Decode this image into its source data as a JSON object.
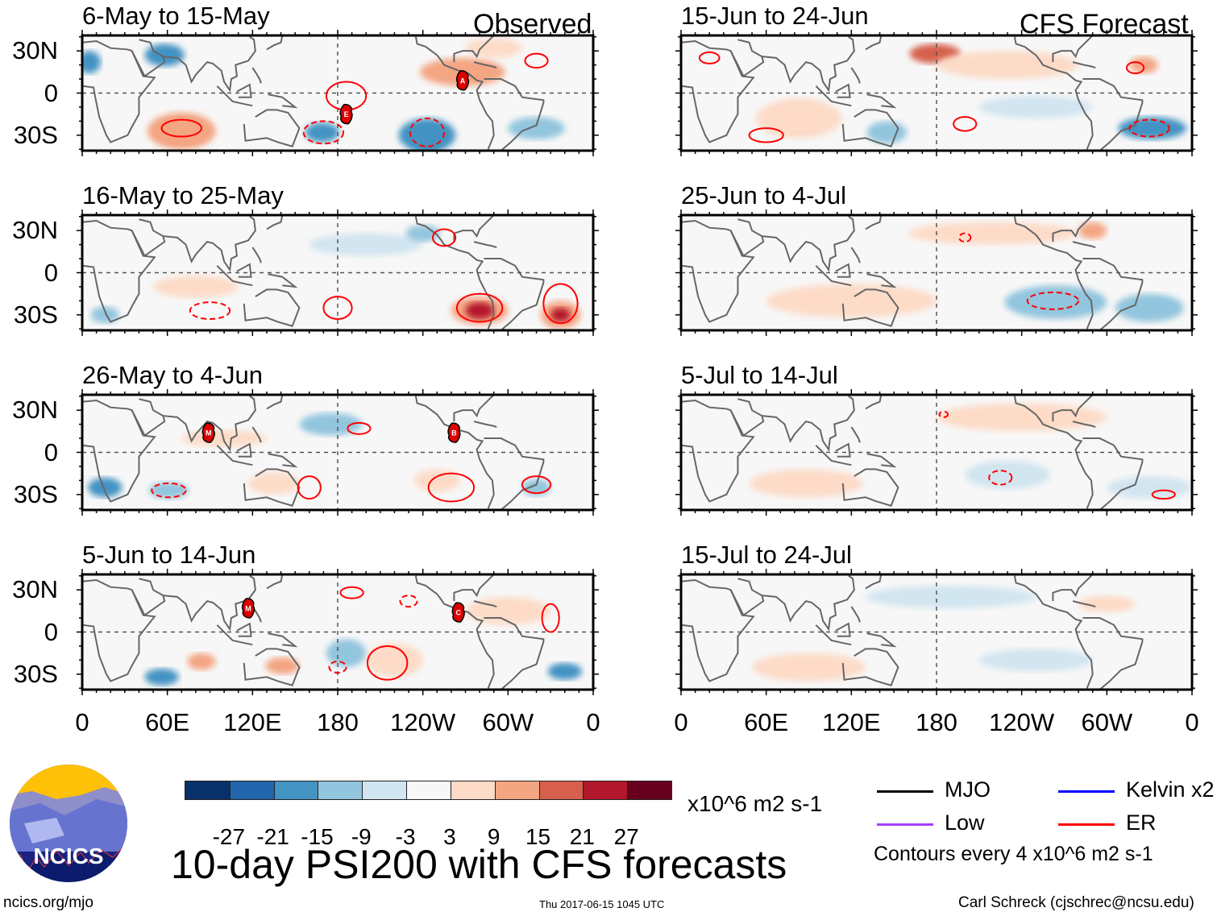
{
  "figure": {
    "title": "10-day PSI200 with CFS forecasts",
    "observed_label": "Observed",
    "forecast_label": "CFS Forecast",
    "footer_left": "ncics.org/mjo",
    "footer_center": "Thu 2017-06-15 1045 UTC",
    "footer_right": "Carl Schreck (cjschrec@ncsu.edu)",
    "logo_text": "NCICS"
  },
  "axes": {
    "y_ticks": [
      "30N",
      "0",
      "30S"
    ],
    "x_ticks": [
      "0",
      "60E",
      "120E",
      "180",
      "120W",
      "60W",
      "0"
    ]
  },
  "colorbar": {
    "colors": [
      "#08306b",
      "#2166ac",
      "#4393c3",
      "#92c5de",
      "#d1e5f0",
      "#f7f7f7",
      "#fddbc7",
      "#f4a582",
      "#d6604d",
      "#b2182b",
      "#67001f"
    ],
    "labels": [
      "-27",
      "-21",
      "-15",
      "-9",
      "-3",
      "3",
      "9",
      "15",
      "21",
      "27"
    ],
    "units": "x10^6 m2 s-1"
  },
  "legend": {
    "items": [
      {
        "label": "MJO",
        "color": "#000000"
      },
      {
        "label": "Kelvin x2",
        "color": "#0000ff"
      },
      {
        "label": "Low",
        "color": "#a040ff"
      },
      {
        "label": "ER",
        "color": "#ff0000"
      }
    ],
    "contour_note": "Contours every 4 x10^6 m2 s-1"
  },
  "chart_data": {
    "type": "map",
    "variable": "200-hPa streamfunction anomaly (PSI200)",
    "units": "x10^6 m2 s-1",
    "lon_range": [
      0,
      360
    ],
    "lat_range": [
      -41,
      41
    ],
    "panels": [
      {
        "title": "6-May to 15-May",
        "kind": "observed",
        "anomalies": [
          [
            70,
            -27,
            16,
            9,
            9
          ],
          [
            70,
            -27,
            24,
            13,
            7
          ],
          [
            243,
            -32,
            12,
            8,
            0
          ],
          [
            243,
            -30,
            20,
            12,
            2
          ],
          [
            169,
            -28,
            12,
            7,
            2
          ],
          [
            58,
            27,
            14,
            8,
            2
          ],
          [
            268,
            15,
            30,
            10,
            7
          ],
          [
            290,
            32,
            20,
            7,
            6
          ],
          [
            5,
            22,
            8,
            8,
            2
          ],
          [
            320,
            -25,
            20,
            8,
            3
          ]
        ],
        "er_contours": [
          [
            70,
            -25,
            14,
            6,
            0
          ],
          [
            186,
            -2,
            14,
            10,
            0
          ],
          [
            170,
            -28,
            14,
            8,
            1
          ],
          [
            243,
            -28,
            12,
            10,
            1
          ],
          [
            320,
            23,
            8,
            5,
            0
          ]
        ],
        "storms": [
          [
            268,
            9,
            "A"
          ],
          [
            186,
            -15,
            "E"
          ]
        ]
      },
      {
        "title": "16-May to 25-May",
        "kind": "observed",
        "anomalies": [
          [
            280,
            -27,
            20,
            10,
            7
          ],
          [
            280,
            -27,
            10,
            6,
            9
          ],
          [
            337,
            -30,
            14,
            10,
            7
          ],
          [
            337,
            -30,
            7,
            5,
            9
          ],
          [
            16,
            -30,
            10,
            6,
            3
          ],
          [
            200,
            20,
            40,
            8,
            4
          ],
          [
            80,
            -10,
            30,
            8,
            6
          ],
          [
            240,
            28,
            12,
            6,
            3
          ]
        ],
        "er_contours": [
          [
            280,
            -25,
            16,
            10,
            0
          ],
          [
            337,
            -22,
            12,
            14,
            0
          ],
          [
            90,
            -27,
            14,
            6,
            1
          ],
          [
            180,
            -25,
            10,
            8,
            0
          ],
          [
            255,
            25,
            8,
            6,
            0
          ]
        ],
        "storms": []
      },
      {
        "title": "26-May to 4-Jun",
        "kind": "observed",
        "anomalies": [
          [
            16,
            -25,
            12,
            7,
            2
          ],
          [
            61,
            -27,
            14,
            6,
            3
          ],
          [
            135,
            -22,
            18,
            8,
            6
          ],
          [
            175,
            20,
            22,
            8,
            3
          ],
          [
            250,
            -20,
            16,
            8,
            6
          ],
          [
            320,
            -25,
            10,
            6,
            3
          ],
          [
            100,
            10,
            30,
            6,
            6
          ]
        ],
        "er_contours": [
          [
            61,
            -27,
            12,
            5,
            1
          ],
          [
            160,
            -25,
            8,
            8,
            0
          ],
          [
            260,
            -25,
            16,
            10,
            0
          ],
          [
            195,
            17,
            8,
            4,
            0
          ],
          [
            320,
            -23,
            10,
            6,
            0
          ]
        ],
        "storms": [
          [
            89,
            14,
            "M"
          ],
          [
            262,
            14,
            "B"
          ]
        ]
      },
      {
        "title": "5-Jun to 14-Jun",
        "kind": "observed",
        "anomalies": [
          [
            56,
            -32,
            12,
            6,
            2
          ],
          [
            84,
            -21,
            10,
            6,
            7
          ],
          [
            141,
            -24,
            12,
            6,
            7
          ],
          [
            186,
            -15,
            14,
            10,
            3
          ],
          [
            340,
            -28,
            12,
            6,
            2
          ],
          [
            220,
            -20,
            20,
            12,
            6
          ],
          [
            300,
            15,
            30,
            10,
            6
          ]
        ],
        "er_contours": [
          [
            215,
            -22,
            14,
            12,
            0
          ],
          [
            180,
            -25,
            6,
            4,
            1
          ],
          [
            190,
            28,
            8,
            4,
            0
          ],
          [
            230,
            22,
            6,
            4,
            1
          ],
          [
            330,
            10,
            6,
            10,
            0
          ]
        ],
        "storms": [
          [
            117,
            17,
            "M"
          ],
          [
            265,
            14,
            "C"
          ]
        ]
      },
      {
        "title": "15-Jun to 24-Jun",
        "kind": "forecast",
        "anomalies": [
          [
            179,
            28,
            18,
            7,
            8
          ],
          [
            83,
            -18,
            18,
            10,
            8
          ],
          [
            83,
            -18,
            30,
            14,
            6
          ],
          [
            145,
            -28,
            14,
            8,
            3
          ],
          [
            332,
            -25,
            24,
            8,
            2
          ],
          [
            326,
            20,
            10,
            6,
            7
          ],
          [
            250,
            -10,
            40,
            8,
            4
          ],
          [
            230,
            20,
            50,
            10,
            6
          ]
        ],
        "er_contours": [
          [
            60,
            -30,
            12,
            5,
            0
          ],
          [
            200,
            -22,
            8,
            5,
            0
          ],
          [
            330,
            -25,
            14,
            6,
            1
          ],
          [
            320,
            18,
            6,
            4,
            0
          ],
          [
            20,
            25,
            7,
            4,
            0
          ]
        ],
        "storms": []
      },
      {
        "title": "25-Jun to 4-Jul",
        "kind": "forecast",
        "anomalies": [
          [
            220,
            28,
            60,
            8,
            6
          ],
          [
            264,
            -21,
            20,
            6,
            2
          ],
          [
            264,
            -21,
            36,
            12,
            3
          ],
          [
            120,
            -20,
            60,
            12,
            6
          ],
          [
            330,
            -25,
            24,
            10,
            3
          ],
          [
            290,
            30,
            10,
            6,
            7
          ]
        ],
        "er_contours": [
          [
            262,
            -20,
            18,
            6,
            1
          ],
          [
            200,
            25,
            4,
            3,
            1
          ]
        ],
        "storms": []
      },
      {
        "title": "5-Jul to 14-Jul",
        "kind": "forecast",
        "anomalies": [
          [
            240,
            25,
            60,
            10,
            6
          ],
          [
            230,
            -16,
            18,
            6,
            3
          ],
          [
            230,
            -16,
            30,
            10,
            4
          ],
          [
            88,
            -22,
            40,
            10,
            6
          ],
          [
            330,
            -25,
            30,
            8,
            4
          ]
        ],
        "er_contours": [
          [
            225,
            -18,
            8,
            5,
            1
          ],
          [
            340,
            -30,
            8,
            3,
            0
          ],
          [
            185,
            27,
            3,
            2,
            1
          ]
        ],
        "storms": []
      },
      {
        "title": "15-Jul to 24-Jul",
        "kind": "forecast",
        "anomalies": [
          [
            190,
            25,
            60,
            8,
            4
          ],
          [
            90,
            -25,
            40,
            10,
            6
          ],
          [
            300,
            20,
            20,
            6,
            6
          ],
          [
            250,
            -20,
            40,
            8,
            4
          ]
        ],
        "er_contours": [],
        "storms": []
      }
    ]
  }
}
